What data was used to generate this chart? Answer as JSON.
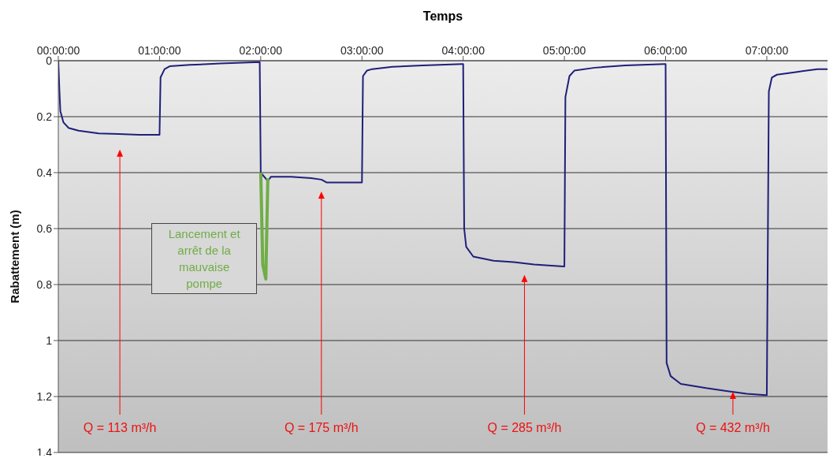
{
  "chart_data": {
    "type": "line",
    "xlabel": "Temps",
    "ylabel": "Rabattement (m)",
    "xlim": [
      0,
      7.6
    ],
    "ylim": [
      1.4,
      0
    ],
    "xticks": [
      {
        "value": 0,
        "label": "00:00:00"
      },
      {
        "value": 1,
        "label": "01:00:00"
      },
      {
        "value": 2,
        "label": "02:00:00"
      },
      {
        "value": 3,
        "label": "03:00:00"
      },
      {
        "value": 4,
        "label": "04:00:00"
      },
      {
        "value": 5,
        "label": "05:00:00"
      },
      {
        "value": 6,
        "label": "06:00:00"
      },
      {
        "value": 7,
        "label": "07:00:00"
      }
    ],
    "yticks": [
      0,
      0.2,
      0.4,
      0.6,
      0.8,
      1,
      1.2,
      1.4
    ],
    "grid": "y",
    "series": [
      {
        "color": "#1f1f7a",
        "x": [
          0,
          0.01,
          0.02,
          0.05,
          0.1,
          0.2,
          0.4,
          0.6,
          0.8,
          0.99,
          1.0,
          1.01,
          1.05,
          1.1,
          1.3,
          1.6,
          1.99,
          2.0,
          2.07,
          2.1,
          2.3,
          2.5,
          2.6,
          2.65,
          2.99,
          3.0,
          3.01,
          3.05,
          3.1,
          3.3,
          3.6,
          3.99,
          4.0,
          4.01,
          4.03,
          4.1,
          4.3,
          4.5,
          4.7,
          4.99,
          5.0,
          5.01,
          5.05,
          5.1,
          5.3,
          5.6,
          5.99,
          6.0,
          6.01,
          6.05,
          6.15,
          6.4,
          6.6,
          6.8,
          6.99,
          7.0,
          7.02,
          7.05,
          7.1,
          7.3,
          7.5,
          7.6
        ],
        "values": [
          0,
          0.1,
          0.18,
          0.22,
          0.24,
          0.25,
          0.26,
          0.262,
          0.265,
          0.265,
          0.265,
          0.06,
          0.03,
          0.02,
          0.015,
          0.01,
          0.005,
          0.4,
          0.43,
          0.415,
          0.415,
          0.42,
          0.425,
          0.435,
          0.435,
          0.435,
          0.055,
          0.035,
          0.03,
          0.022,
          0.017,
          0.012,
          0.012,
          0.6,
          0.665,
          0.7,
          0.715,
          0.72,
          0.728,
          0.735,
          0.735,
          0.13,
          0.055,
          0.035,
          0.025,
          0.017,
          0.012,
          0.012,
          1.08,
          1.127,
          1.155,
          1.17,
          1.18,
          1.19,
          1.195,
          1.195,
          0.11,
          0.06,
          0.05,
          0.04,
          0.03,
          0.03
        ]
      },
      {
        "color": "#70ad47",
        "x": [
          2.0,
          2.02,
          2.05,
          2.07
        ],
        "values": [
          0.4,
          0.73,
          0.78,
          0.42
        ]
      }
    ],
    "annotations": [
      "Lancement  et arrêt de la mauvaise pompe",
      "Q = 113 m³/h",
      "Q = 175 m³/h",
      "Q = 285 m³/h",
      "Q = 432 m³/h"
    ]
  }
}
